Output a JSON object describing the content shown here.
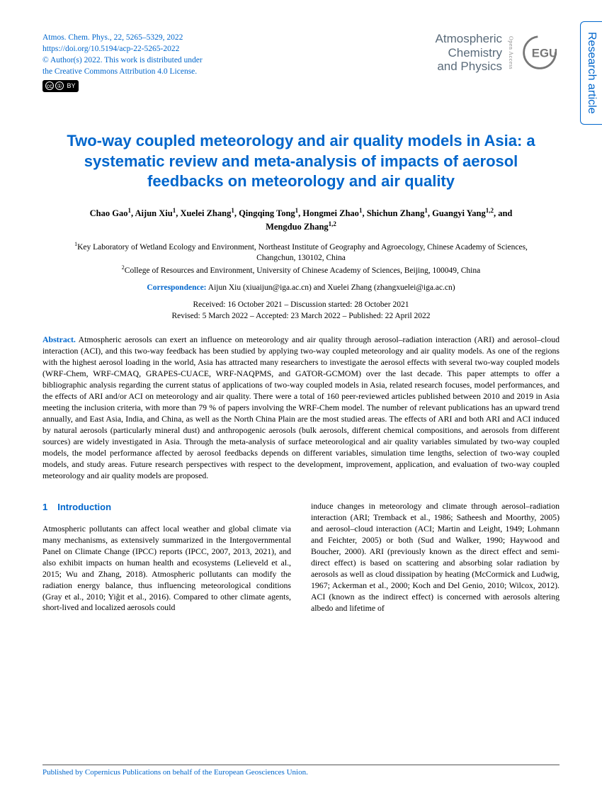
{
  "header": {
    "citation_line1": "Atmos. Chem. Phys., 22, 5265–5329, 2022",
    "doi_url": "https://doi.org/10.5194/acp-22-5265-2022",
    "copyright_line1": "© Author(s) 2022. This work is distributed under",
    "copyright_line2": "the Creative Commons Attribution 4.0 License.",
    "cc_label": "cc",
    "journal_line1": "Atmospheric",
    "journal_line2": "Chemistry",
    "journal_line3": "and Physics",
    "open_access": "Open Access",
    "side_tab": "Research article"
  },
  "title": "Two-way coupled meteorology and air quality models in Asia: a systematic review and meta-analysis of impacts of aerosol feedbacks on meteorology and air quality",
  "authors_html": "Chao Gao<sup>1</sup>, Aijun Xiu<sup>1</sup>, Xuelei Zhang<sup>1</sup>, Qingqing Tong<sup>1</sup>, Hongmei Zhao<sup>1</sup>, Shichun Zhang<sup>1</sup>, Guangyi Yang<sup>1,2</sup>, and Mengduo Zhang<sup>1,2</sup>",
  "affiliation1": "<sup>1</sup>Key Laboratory of Wetland Ecology and Environment, Northeast Institute of Geography and Agroecology, Chinese Academy of Sciences, Changchun, 130102, China",
  "affiliation2": "<sup>2</sup>College of Resources and Environment, University of Chinese Academy of Sciences, Beijing, 100049, China",
  "correspondence_label": "Correspondence:",
  "correspondence_text": " Aijun Xiu (xiuaijun@iga.ac.cn) and Xuelei Zhang (zhangxuelei@iga.ac.cn)",
  "dates_line1": "Received: 16 October 2021 – Discussion started: 28 October 2021",
  "dates_line2": "Revised: 5 March 2022 – Accepted: 23 March 2022 – Published: 22 April 2022",
  "abstract_label": "Abstract.",
  "abstract_text": " Atmospheric aerosols can exert an influence on meteorology and air quality through aerosol–radiation interaction (ARI) and aerosol–cloud interaction (ACI), and this two-way feedback has been studied by applying two-way coupled meteorology and air quality models. As one of the regions with the highest aerosol loading in the world, Asia has attracted many researchers to investigate the aerosol effects with several two-way coupled models (WRF-Chem, WRF-CMAQ, GRAPES-CUACE, WRF-NAQPMS, and GATOR-GCMOM) over the last decade. This paper attempts to offer a bibliographic analysis regarding the current status of applications of two-way coupled models in Asia, related research focuses, model performances, and the effects of ARI and/or ACI on meteorology and air quality. There were a total of 160 peer-reviewed articles published between 2010 and 2019 in Asia meeting the inclusion criteria, with more than 79 % of papers involving the WRF-Chem model. The number of relevant publications has an upward trend annually, and East Asia, India, and China, as well as the North China Plain are the most studied areas. The effects of ARI and both ARI and ACI induced by natural aerosols (particularly mineral dust) and anthropogenic aerosols (bulk aerosols, different chemical compositions, and aerosols from different sources) are widely investigated in Asia. Through the meta-analysis of surface meteorological and air quality variables simulated by two-way coupled models, the model performance affected by aerosol feedbacks depends on different variables, simulation time lengths, selection of two-way coupled models, and study areas. Future research perspectives with respect to the development, improvement, application, and evaluation of two-way coupled meteorology and air quality models are proposed.",
  "section1_num": "1",
  "section1_title": "Introduction",
  "col1_text": "Atmospheric pollutants can affect local weather and global climate via many mechanisms, as extensively summarized in the Intergovernmental Panel on Climate Change (IPCC) reports (IPCC, 2007, 2013, 2021), and also exhibit impacts on human health and ecosystems (Lelieveld et al., 2015; Wu and Zhang, 2018). Atmospheric pollutants can modify the radiation energy balance, thus influencing meteorological conditions (Gray et al., 2010; Yiğit et al., 2016). Compared to other climate agents, short-lived and localized aerosols could",
  "col2_text": "induce changes in meteorology and climate through aerosol–radiation interaction (ARI; Tremback et al., 1986; Satheesh and Moorthy, 2005) and aerosol–cloud interaction (ACI; Martin and Leight, 1949; Lohmann and Feichter, 2005) or both (Sud and Walker, 1990; Haywood and Boucher, 2000). ARI (previously known as the direct effect and semi-direct effect) is based on scattering and absorbing solar radiation by aerosols as well as cloud dissipation by heating (McCormick and Ludwig, 1967; Ackerman et al., 2000; Koch and Del Genio, 2010; Wilcox, 2012). ACI (known as the indirect effect) is concerned with aerosols altering albedo and lifetime of",
  "footer": "Published by Copernicus Publications on behalf of the European Geosciences Union.",
  "colors": {
    "link_blue": "#0066cc",
    "journal_gray": "#5a6b7a"
  }
}
